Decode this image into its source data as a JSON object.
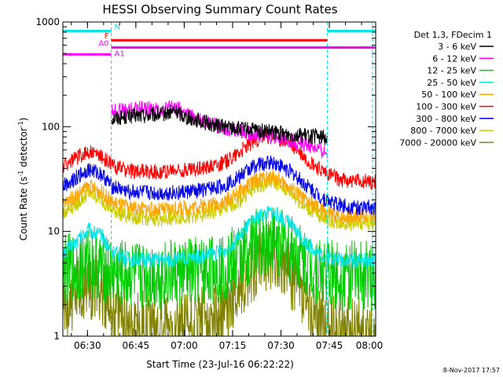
{
  "chart_data": {
    "type": "line",
    "title": "HESSI Observing Summary Count Rates",
    "xlabel": "Start Time (23-Jul-16 06:22:22)",
    "ylabel_main": "Count Rate (s",
    "ylabel_sup1": "-1",
    "ylabel_mid": " detector",
    "ylabel_sup2": "-1",
    "ylabel_end": ")",
    "x_range_minutes": [
      0,
      97
    ],
    "y_scale": "log",
    "ylim": [
      1,
      1000
    ],
    "x_ticks": [
      {
        "label": "06:30",
        "minutes": 7.63
      },
      {
        "label": "06:45",
        "minutes": 22.63
      },
      {
        "label": "07:00",
        "minutes": 37.63
      },
      {
        "label": "07:15",
        "minutes": 52.63
      },
      {
        "label": "07:30",
        "minutes": 67.63
      },
      {
        "label": "07:45",
        "minutes": 82.63
      },
      {
        "label": "08:00",
        "minutes": 97.63
      }
    ],
    "y_ticks": [
      {
        "label": "1",
        "value": 1
      },
      {
        "label": "10",
        "value": 10
      },
      {
        "label": "100",
        "value": 100
      },
      {
        "label": "1000",
        "value": 1000
      }
    ],
    "legend_title": "Det 1,3, FDecim 1",
    "series": [
      {
        "name": "3 - 6 keV",
        "color": "#000000",
        "x": [
          15,
          20,
          25,
          30,
          35,
          38,
          42,
          46,
          50,
          55,
          60,
          65,
          70,
          75,
          80,
          82
        ],
        "y": [
          120,
          125,
          128,
          130,
          140,
          125,
          115,
          105,
          100,
          95,
          92,
          88,
          85,
          82,
          80,
          78
        ]
      },
      {
        "name": "6 - 12 keV",
        "color": "#ff00ff",
        "x": [
          15,
          20,
          25,
          30,
          35,
          38,
          42,
          46,
          50,
          55,
          60,
          65,
          70,
          75,
          80,
          82
        ],
        "y": [
          140,
          145,
          150,
          145,
          155,
          130,
          118,
          105,
          98,
          90,
          85,
          82,
          75,
          68,
          60,
          55
        ]
      },
      {
        "name": "12 - 25 keV",
        "color": "#00cc00",
        "x": [
          0,
          5,
          8,
          12,
          15,
          20,
          30,
          40,
          50,
          55,
          60,
          65,
          70,
          75,
          80,
          85,
          90,
          97
        ],
        "y": [
          4.3,
          4.6,
          5.0,
          4.6,
          4.0,
          3.8,
          3.8,
          4.0,
          4.5,
          5.8,
          7.5,
          8.5,
          7.0,
          5.0,
          4.2,
          3.8,
          3.8,
          3.8
        ]
      },
      {
        "name": "25 - 50 keV",
        "color": "#00e5e5",
        "x": [
          0,
          5,
          8,
          12,
          15,
          20,
          30,
          40,
          50,
          55,
          60,
          65,
          70,
          75,
          80,
          85,
          90,
          97
        ],
        "y": [
          6.0,
          8.5,
          10.5,
          9.0,
          6.5,
          5.5,
          5.3,
          5.5,
          6.5,
          9.0,
          13.5,
          15.5,
          12.0,
          8.0,
          6.0,
          5.5,
          5.3,
          5.3
        ]
      },
      {
        "name": "50 - 100 keV",
        "color": "#ffa500",
        "x": [
          0,
          5,
          8,
          12,
          15,
          20,
          30,
          40,
          50,
          55,
          60,
          65,
          70,
          75,
          80,
          85,
          90,
          97
        ],
        "y": [
          18,
          23,
          27,
          24,
          19,
          17,
          16,
          17,
          19,
          24,
          31,
          33,
          27,
          20,
          16,
          14,
          14,
          14
        ]
      },
      {
        "name": "100 - 300 keV",
        "color": "#ff0000",
        "x": [
          0,
          5,
          8,
          12,
          15,
          20,
          30,
          40,
          50,
          55,
          60,
          65,
          70,
          75,
          80,
          85,
          90,
          97
        ],
        "y": [
          42,
          52,
          58,
          52,
          43,
          38,
          37,
          39,
          45,
          58,
          75,
          82,
          70,
          50,
          38,
          32,
          30,
          30
        ]
      },
      {
        "name": "300 - 800 keV",
        "color": "#0000ee",
        "x": [
          0,
          5,
          8,
          12,
          15,
          20,
          30,
          40,
          50,
          55,
          60,
          65,
          70,
          75,
          80,
          85,
          90,
          97
        ],
        "y": [
          27,
          34,
          39,
          35,
          27,
          24,
          23,
          24,
          27,
          34,
          43,
          46,
          38,
          28,
          21,
          18,
          17,
          17
        ]
      },
      {
        "name": "800 - 7000 keV",
        "color": "#cccc00",
        "x": [
          0,
          5,
          8,
          12,
          15,
          20,
          30,
          40,
          50,
          55,
          60,
          65,
          70,
          75,
          80,
          85,
          90,
          97
        ],
        "y": [
          15,
          19,
          23,
          20,
          16,
          14,
          13,
          14,
          16,
          20,
          27,
          30,
          24,
          17,
          14,
          12,
          12,
          12
        ]
      },
      {
        "name": "7000 - 20000 keV",
        "color": "#808000",
        "x": [
          0,
          5,
          8,
          12,
          15,
          20,
          30,
          40,
          50,
          55,
          60,
          65,
          70,
          75,
          80,
          85,
          90,
          97
        ],
        "y": [
          1.6,
          2.5,
          3.2,
          2.8,
          1.8,
          1.4,
          1.2,
          1.3,
          1.6,
          3.0,
          5.0,
          6.0,
          4.0,
          2.0,
          1.4,
          1.2,
          1.1,
          1.1
        ]
      }
    ],
    "flags": [
      {
        "label": "N",
        "color": "#00e5e5",
        "x_start": 0,
        "x_end": 15,
        "x2_start": 82,
        "x2_end": 97,
        "value": 820
      },
      {
        "label": "F",
        "color": "#ff0000",
        "x_start": 15,
        "x_end": 82,
        "value": 670
      },
      {
        "label": "A0",
        "color": "#ff00ff",
        "x_start": 15,
        "x_end": 97,
        "value": 570
      },
      {
        "label": "A1",
        "color": "#ff00ff",
        "x_start": 0,
        "x_end": 15,
        "value": 490
      }
    ],
    "saa_lines_minutes": [
      15,
      82,
      96
    ]
  },
  "footer": {
    "date": "8-Nov-2017 17:57"
  }
}
